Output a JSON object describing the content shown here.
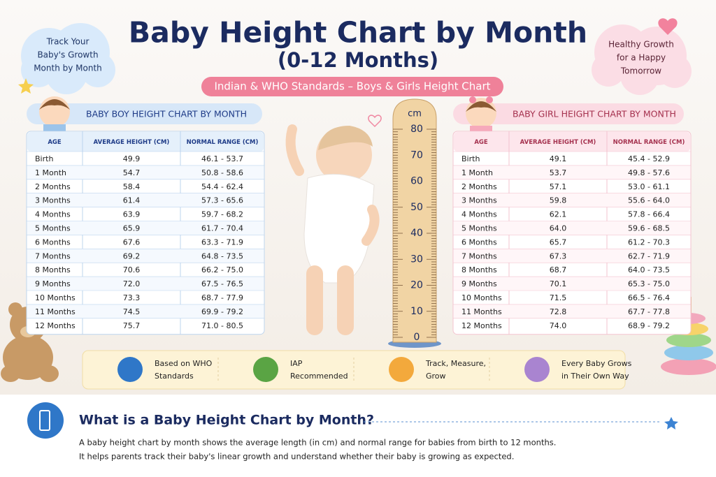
{
  "header": {
    "title": "Baby Height Chart by Month",
    "subtitle": "(0-12 Months)",
    "tagline": "Indian & WHO Standards – Boys & Girls Height Chart"
  },
  "bubbles": {
    "left": [
      "Track Your",
      "Baby's Growth",
      "Month by Month"
    ],
    "right": [
      "Healthy Growth",
      "for a Happy",
      "Tomorrow"
    ]
  },
  "boy_table": {
    "title": "BABY BOY HEIGHT CHART BY MONTH",
    "columns": [
      "AGE",
      "AVERAGE HEIGHT (CM)",
      "NORMAL RANGE (CM)"
    ],
    "rows": [
      [
        "Birth",
        "49.9",
        "46.1 - 53.7"
      ],
      [
        "1 Month",
        "54.7",
        "50.8 - 58.6"
      ],
      [
        "2 Months",
        "58.4",
        "54.4 - 62.4"
      ],
      [
        "3 Months",
        "61.4",
        "57.3 - 65.6"
      ],
      [
        "4 Months",
        "63.9",
        "59.7 - 68.2"
      ],
      [
        "5 Months",
        "65.9",
        "61.7 - 70.4"
      ],
      [
        "6 Months",
        "67.6",
        "63.3 - 71.9"
      ],
      [
        "7 Months",
        "69.2",
        "64.8 - 73.5"
      ],
      [
        "8 Months",
        "70.6",
        "66.2 - 75.0"
      ],
      [
        "9 Months",
        "72.0",
        "67.5 - 76.5"
      ],
      [
        "10 Months",
        "73.3",
        "68.7 - 77.9"
      ],
      [
        "11 Months",
        "74.5",
        "69.9 - 79.2"
      ],
      [
        "12 Months",
        "75.7",
        "71.0 - 80.5"
      ]
    ]
  },
  "girl_table": {
    "title": "BABY GIRL HEIGHT CHART BY MONTH",
    "columns": [
      "AGE",
      "AVERAGE HEIGHT (CM)",
      "NORMAL RANGE (CM)"
    ],
    "rows": [
      [
        "Birth",
        "49.1",
        "45.4 - 52.9"
      ],
      [
        "1 Month",
        "53.7",
        "49.8 - 57.6"
      ],
      [
        "2 Months",
        "57.1",
        "53.0 - 61.1"
      ],
      [
        "3 Months",
        "59.8",
        "55.6 - 64.0"
      ],
      [
        "4 Months",
        "62.1",
        "57.8 - 66.4"
      ],
      [
        "5 Months",
        "64.0",
        "59.6 - 68.5"
      ],
      [
        "6 Months",
        "65.7",
        "61.2 - 70.3"
      ],
      [
        "7 Months",
        "67.3",
        "62.7 - 71.9"
      ],
      [
        "8 Months",
        "68.7",
        "64.0 - 73.5"
      ],
      [
        "9 Months",
        "70.1",
        "65.3 - 75.0"
      ],
      [
        "10 Months",
        "71.5",
        "66.5 - 76.4"
      ],
      [
        "11 Months",
        "72.8",
        "67.7 - 77.8"
      ],
      [
        "12 Months",
        "74.0",
        "68.9 - 79.2"
      ]
    ]
  },
  "ruler": {
    "unit": "cm",
    "labels": [
      80,
      70,
      60,
      50,
      40,
      30,
      20,
      10,
      0
    ]
  },
  "features": [
    [
      "Based on WHO",
      "Standards"
    ],
    [
      "IAP",
      "Recommended"
    ],
    [
      "Track, Measure,",
      "Grow"
    ],
    [
      "Every Baby Grows",
      "in Their Own Way"
    ]
  ],
  "section": {
    "heading": "What is a Baby Height Chart by Month?",
    "paragraph": [
      "A baby height chart by month shows the average length (in cm) and normal range for babies from birth to 12 months.",
      "It helps parents track their baby's linear growth and understand whether their baby is growing as expected."
    ]
  }
}
